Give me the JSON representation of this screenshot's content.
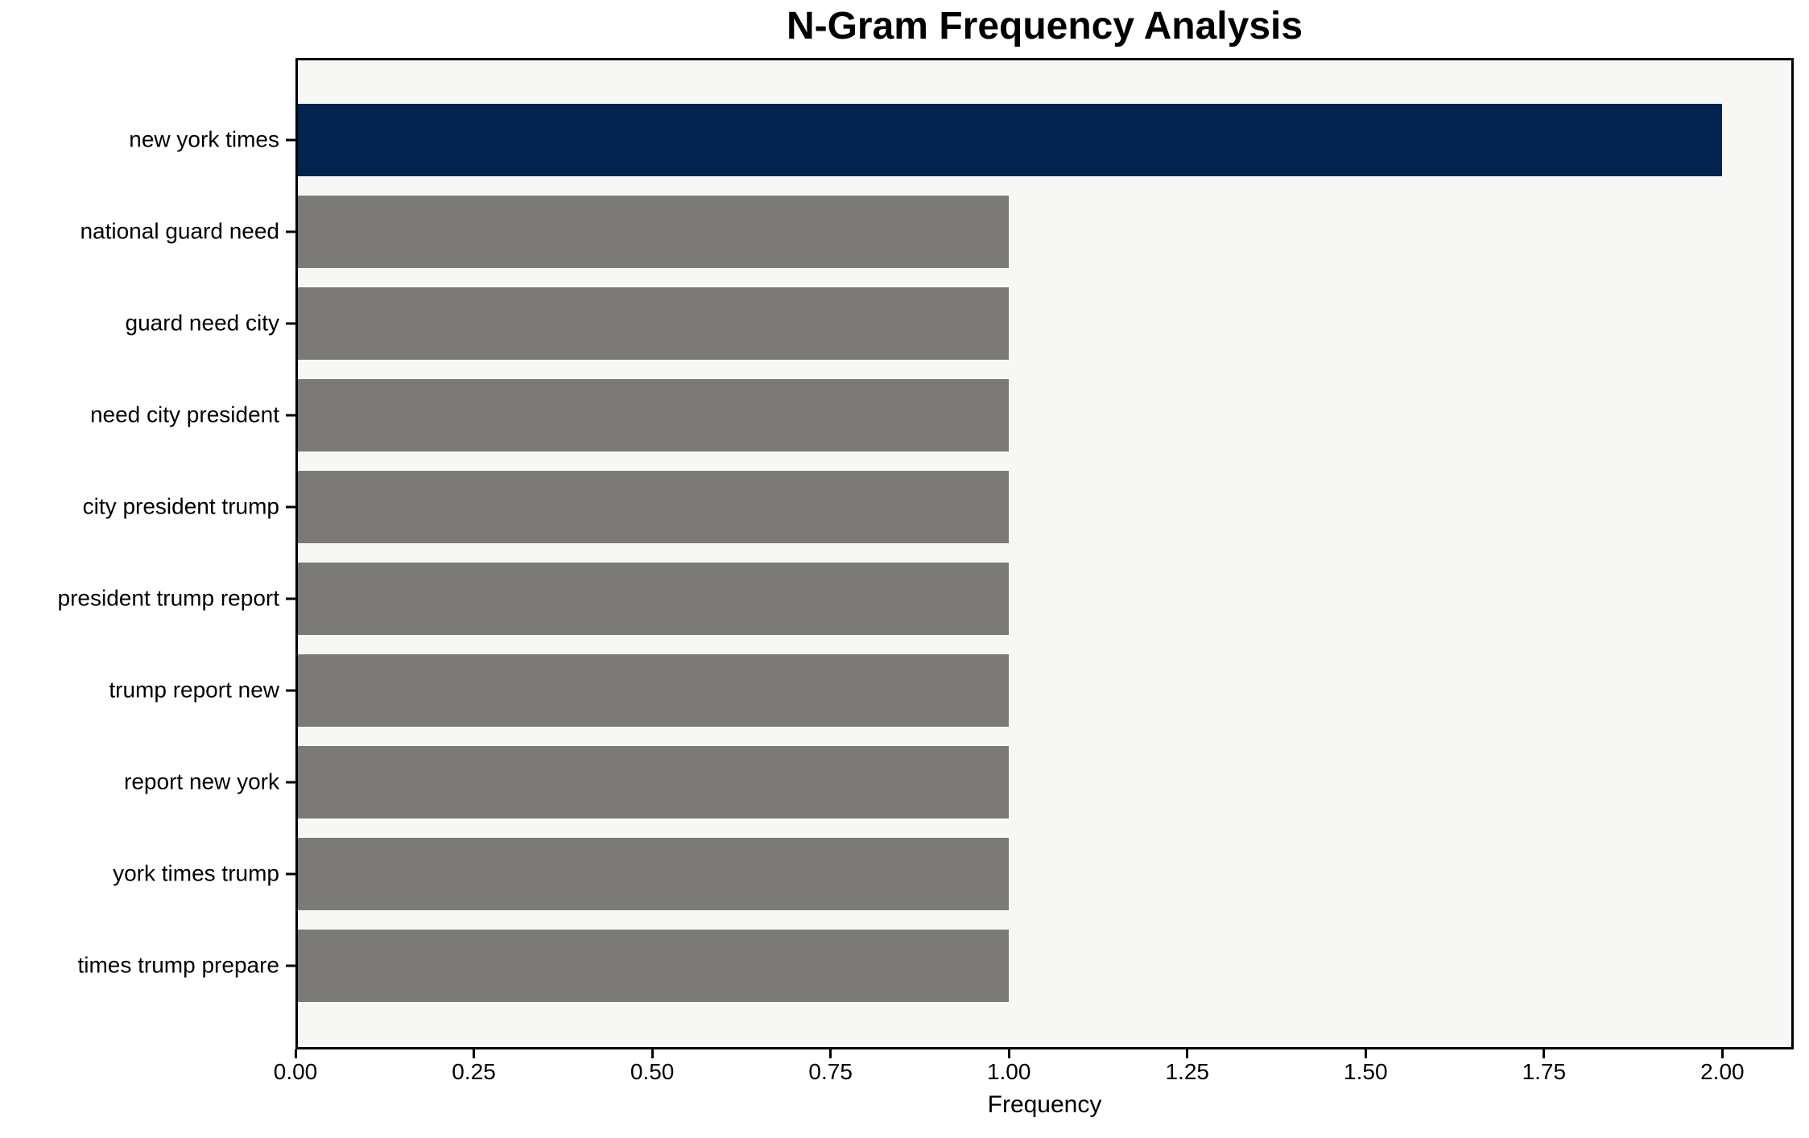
{
  "chart_data": {
    "type": "bar",
    "orientation": "horizontal",
    "title": "N-Gram Frequency Analysis",
    "xlabel": "Frequency",
    "ylabel": "",
    "categories": [
      "new york times",
      "national guard need",
      "guard need city",
      "need city president",
      "city president trump",
      "president trump report",
      "trump report new",
      "report new york",
      "york times trump",
      "times trump prepare"
    ],
    "values": [
      2,
      1,
      1,
      1,
      1,
      1,
      1,
      1,
      1,
      1
    ],
    "bar_colors": [
      "#02234d",
      "#7b7a76",
      "#7b7a76",
      "#7b7a76",
      "#7b7a76",
      "#7b7a76",
      "#7b7a76",
      "#7b7a76",
      "#7b7a76",
      "#7b7a76"
    ],
    "xlim": [
      0,
      2.1
    ],
    "xticks": [
      {
        "value": 0.0,
        "label": "0.00"
      },
      {
        "value": 0.25,
        "label": "0.25"
      },
      {
        "value": 0.5,
        "label": "0.50"
      },
      {
        "value": 0.75,
        "label": "0.75"
      },
      {
        "value": 1.0,
        "label": "1.00"
      },
      {
        "value": 1.25,
        "label": "1.25"
      },
      {
        "value": 1.5,
        "label": "1.50"
      },
      {
        "value": 1.75,
        "label": "1.75"
      },
      {
        "value": 2.0,
        "label": "2.00"
      }
    ],
    "grid": false,
    "legend": "none",
    "colors": {
      "highlight_bar": "#02234d",
      "default_bar": "#7b7a76",
      "plot_background": "#f7f7f6",
      "figure_background": "#ffffff",
      "axis": "#000000",
      "text": "#000000"
    }
  }
}
